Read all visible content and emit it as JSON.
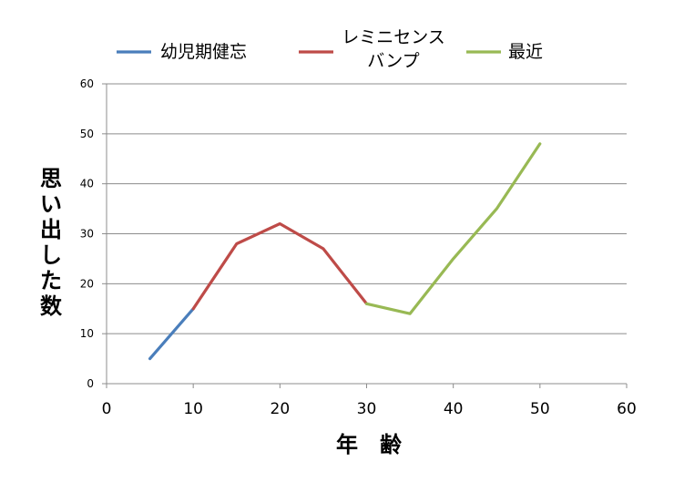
{
  "chart_data": {
    "type": "line",
    "title": "",
    "xlabel": "年　齢",
    "ylabel": "思い出した数",
    "xlim": [
      0,
      60
    ],
    "ylim": [
      0,
      60
    ],
    "x_ticks": [
      "0",
      "10",
      "20",
      "30",
      "40",
      "50",
      "60"
    ],
    "y_ticks": [
      "0",
      "10",
      "20",
      "30",
      "40",
      "50",
      "60"
    ],
    "grid": "horizontal",
    "legend_position": "top",
    "series": [
      {
        "name": "幼児期健忘",
        "color": "#4a7ebb",
        "x": [
          5,
          10
        ],
        "y": [
          5,
          15
        ]
      },
      {
        "name": "レミニセンス\nバンプ",
        "color": "#be4b48",
        "x": [
          10,
          15,
          20,
          25,
          30
        ],
        "y": [
          15,
          28,
          32,
          27,
          16
        ]
      },
      {
        "name": "最近",
        "color": "#98b954",
        "x": [
          30,
          35,
          40,
          45,
          50
        ],
        "y": [
          16,
          14,
          25,
          35,
          48
        ]
      }
    ]
  }
}
